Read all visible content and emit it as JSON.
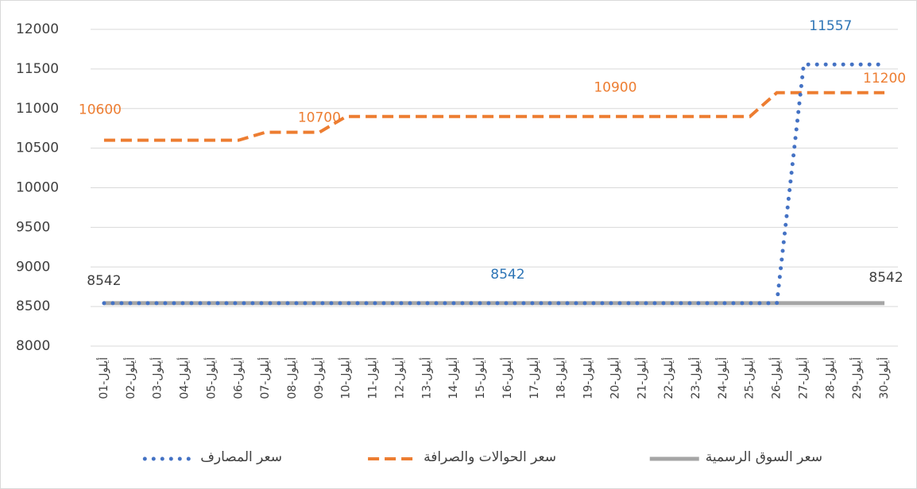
{
  "chart_data": {
    "type": "line",
    "categories": [
      "01-أيلول",
      "02-أيلول",
      "03-أيلول",
      "04-أيلول",
      "05-أيلول",
      "06-أيلول",
      "07-أيلول",
      "08-أيلول",
      "09-أيلول",
      "10-أيلول",
      "11-أيلول",
      "12-أيلول",
      "13-أيلول",
      "14-أيلول",
      "15-أيلول",
      "16-أيلول",
      "17-أيلول",
      "18-أيلول",
      "19-أيلول",
      "20-أيلول",
      "21-أيلول",
      "22-أيلول",
      "23-أيلول",
      "24-أيلول",
      "25-أيلول",
      "26-أيلول",
      "27-أيلول",
      "28-أيلول",
      "29-أيلول",
      "30-أيلول"
    ],
    "series": [
      {
        "name": "سعر المصارف",
        "color": "#4472c4",
        "style": "dotted",
        "values": [
          8542,
          8542,
          8542,
          8542,
          8542,
          8542,
          8542,
          8542,
          8542,
          8542,
          8542,
          8542,
          8542,
          8542,
          8542,
          8542,
          8542,
          8542,
          8542,
          8542,
          8542,
          8542,
          8542,
          8542,
          8542,
          8542,
          11557,
          11557,
          11557,
          11557
        ]
      },
      {
        "name": "سعر الحوالات والصرافة",
        "color": "#ed7d31",
        "style": "dashed",
        "values": [
          10600,
          10600,
          10600,
          10600,
          10600,
          10600,
          10700,
          10700,
          10700,
          10900,
          10900,
          10900,
          10900,
          10900,
          10900,
          10900,
          10900,
          10900,
          10900,
          10900,
          10900,
          10900,
          10900,
          10900,
          10900,
          11200,
          11200,
          11200,
          11200,
          11200
        ]
      },
      {
        "name": "سعر السوق الرسمية",
        "color": "#a5a5a5",
        "style": "solid",
        "values": [
          8542,
          8542,
          8542,
          8542,
          8542,
          8542,
          8542,
          8542,
          8542,
          8542,
          8542,
          8542,
          8542,
          8542,
          8542,
          8542,
          8542,
          8542,
          8542,
          8542,
          8542,
          8542,
          8542,
          8542,
          8542,
          8542,
          8542,
          8542,
          8542,
          8542
        ]
      }
    ],
    "ylim": [
      8000,
      12000
    ],
    "yticks": [
      8000,
      8500,
      9000,
      9500,
      10000,
      10500,
      11000,
      11500,
      12000
    ],
    "grid": true,
    "legend": "bottom"
  }
}
